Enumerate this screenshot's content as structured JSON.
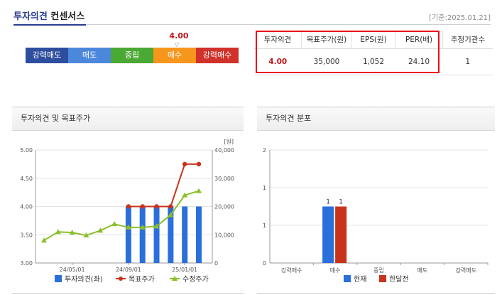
{
  "header": {
    "title_part1": "투자의견",
    "title_part2": "컨센서스",
    "base_date": "[기준:2025.01.21]"
  },
  "scale": {
    "score": "4.00",
    "score_value": 4.0,
    "items": [
      {
        "label": "강력매도",
        "color": "#2d4d9e"
      },
      {
        "label": "매도",
        "color": "#4b88dc"
      },
      {
        "label": "중립",
        "color": "#4aa834"
      },
      {
        "label": "매수",
        "color": "#f7961d"
      },
      {
        "label": "강력매수",
        "color": "#d0312a"
      }
    ]
  },
  "consensus_table": {
    "headers": [
      "투자의견",
      "목표주가(원)",
      "EPS(원)",
      "PER(배)",
      "추정기관수"
    ],
    "values": [
      "4.00",
      "35,000",
      "1,052",
      "24.10",
      "1"
    ]
  },
  "panels": {
    "left_title": "투자의견 및 목표주가",
    "right_title": "투자의견 분포"
  },
  "chart_data": [
    {
      "type": "bar+line",
      "title": "투자의견 및 목표주가",
      "y_left": {
        "range": [
          3.0,
          5.0
        ],
        "ticks": [
          "5.00",
          "4.50",
          "4.00",
          "3.50",
          "3.00"
        ]
      },
      "y_right": {
        "range": [
          0,
          40000
        ],
        "unit": "[원]",
        "ticks": [
          "40,000",
          "30,000",
          "20,000",
          "10,000",
          "0"
        ]
      },
      "x_ticks": [
        "24/05/01",
        "24/09/01",
        "25/01/01"
      ],
      "series": [
        {
          "name": "투자의견(좌)",
          "type": "bar",
          "color": "#2a6fdb",
          "values": [
            null,
            null,
            null,
            null,
            null,
            null,
            4.0,
            4.0,
            4.0,
            4.0,
            4.0,
            4.0
          ]
        },
        {
          "name": "목표주가",
          "type": "line",
          "color": "#c8341b",
          "values": [
            null,
            null,
            null,
            null,
            null,
            null,
            20000,
            20000,
            20000,
            20000,
            35000,
            35000
          ]
        },
        {
          "name": "수정주가",
          "type": "line",
          "color": "#8bbf2b",
          "values": [
            8000,
            11000,
            10800,
            9800,
            11500,
            13800,
            12600,
            12600,
            13000,
            17000,
            24000,
            25500
          ]
        }
      ]
    },
    {
      "type": "bar",
      "title": "투자의견 분포",
      "categories": [
        "강력매수",
        "매수",
        "중립",
        "매도",
        "강력매도"
      ],
      "y_range": [
        0,
        2
      ],
      "y_ticks": [
        "2",
        "1",
        "1",
        "0"
      ],
      "series": [
        {
          "name": "현재",
          "color": "#2a6fdb",
          "values": [
            0,
            1,
            0,
            0,
            0
          ]
        },
        {
          "name": "한달전",
          "color": "#c8341b",
          "values": [
            0,
            1,
            0,
            0,
            0
          ]
        }
      ],
      "data_labels": [
        "1",
        "1"
      ]
    }
  ]
}
